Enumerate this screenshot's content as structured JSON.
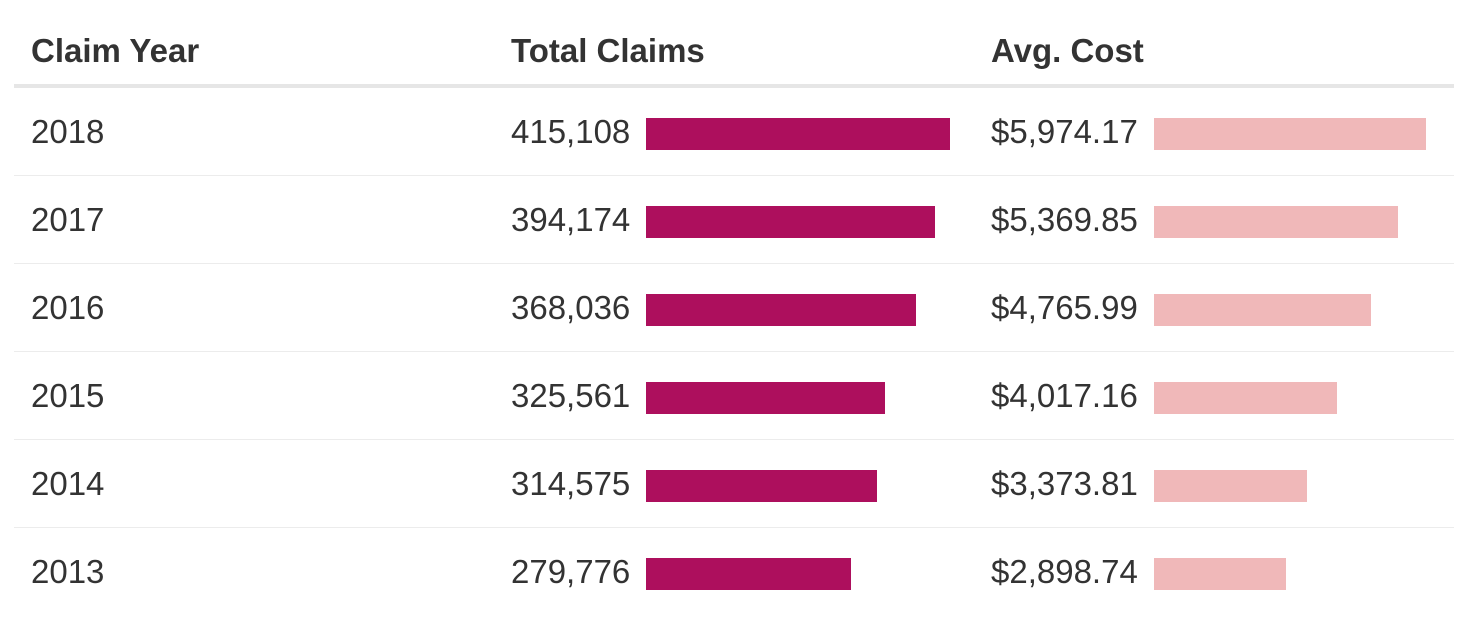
{
  "colors": {
    "claims_bar": "#ad0f5d",
    "cost_bar": "#f0b8b9",
    "text": "#333333"
  },
  "chart_data": {
    "type": "table",
    "columns": [
      "Claim Year",
      "Total Claims",
      "Avg. Cost"
    ],
    "rows": [
      {
        "year": "2018",
        "claims": 415108,
        "claims_label": "415,108",
        "cost": 5974.17,
        "cost_label": "$5,974.17"
      },
      {
        "year": "2017",
        "claims": 394174,
        "claims_label": "394,174",
        "cost": 5369.85,
        "cost_label": "$5,369.85"
      },
      {
        "year": "2016",
        "claims": 368036,
        "claims_label": "368,036",
        "cost": 4765.99,
        "cost_label": "$4,765.99"
      },
      {
        "year": "2015",
        "claims": 325561,
        "claims_label": "325,561",
        "cost": 4017.16,
        "cost_label": "$4,017.16"
      },
      {
        "year": "2014",
        "claims": 314575,
        "claims_label": "314,575",
        "cost": 3373.81,
        "cost_label": "$3,373.81"
      },
      {
        "year": "2013",
        "claims": 279776,
        "claims_label": "279,776",
        "cost": 2898.74,
        "cost_label": "$2,898.74"
      }
    ]
  }
}
